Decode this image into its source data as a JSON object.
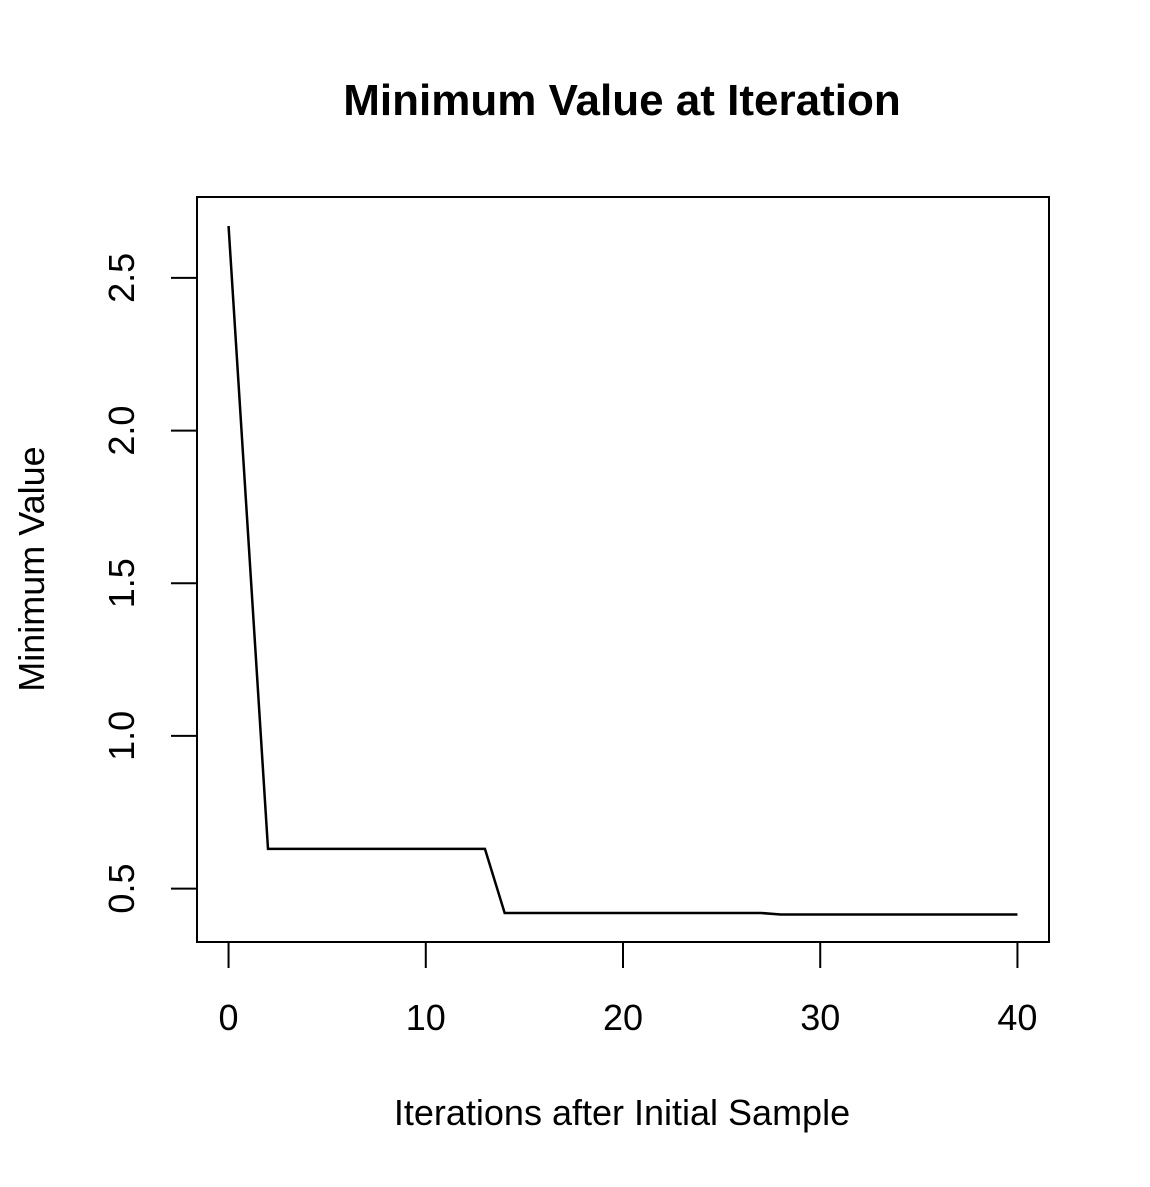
{
  "chart_data": {
    "type": "line",
    "title": "Minimum Value at Iteration",
    "xlabel": "Iterations after Initial Sample",
    "ylabel": "Minimum Value",
    "xlim": [
      -1.6,
      41.6
    ],
    "ylim": [
      0.325,
      2.765
    ],
    "xticks": [
      0,
      10,
      20,
      30,
      40
    ],
    "xtick_labels": [
      "0",
      "10",
      "20",
      "30",
      "40"
    ],
    "yticks": [
      0.5,
      1.0,
      1.5,
      2.0,
      2.5
    ],
    "ytick_labels": [
      "0.5",
      "1.0",
      "1.5",
      "2.0",
      "2.5"
    ],
    "grid": false,
    "line_color": "#000000",
    "series": [
      {
        "x": [
          0,
          1,
          2,
          3,
          4,
          5,
          6,
          7,
          8,
          9,
          10,
          11,
          12,
          13,
          14,
          15,
          16,
          17,
          18,
          19,
          20,
          21,
          22,
          23,
          24,
          25,
          26,
          27,
          28,
          29,
          30,
          31,
          32,
          33,
          34,
          35,
          36,
          37,
          38,
          39,
          40
        ],
        "values": [
          2.67,
          1.65,
          0.63,
          0.63,
          0.63,
          0.63,
          0.63,
          0.63,
          0.63,
          0.63,
          0.63,
          0.63,
          0.63,
          0.63,
          0.42,
          0.42,
          0.42,
          0.42,
          0.42,
          0.42,
          0.42,
          0.42,
          0.42,
          0.42,
          0.42,
          0.42,
          0.42,
          0.42,
          0.415,
          0.415,
          0.415,
          0.415,
          0.415,
          0.415,
          0.415,
          0.415,
          0.415,
          0.415,
          0.415,
          0.415,
          0.415
        ]
      }
    ]
  }
}
